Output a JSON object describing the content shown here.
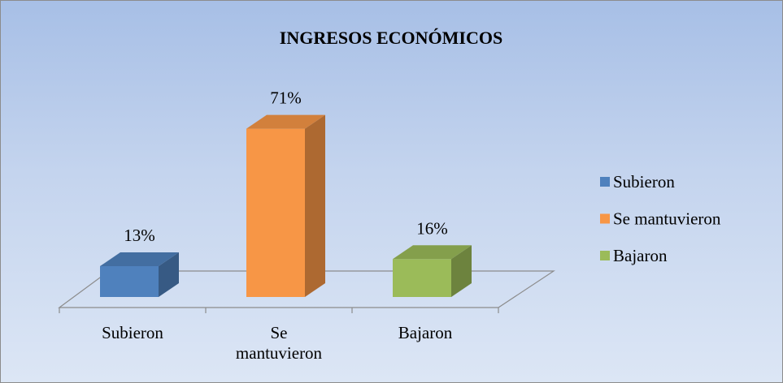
{
  "chart_data": {
    "type": "bar3d",
    "title": "INGRESOS ECONÓMICOS",
    "categories": [
      "Subieron",
      "Se mantuvieron",
      "Bajaron"
    ],
    "values": [
      13,
      71,
      16
    ],
    "value_labels": [
      "13%",
      "71%",
      "16%"
    ],
    "colors": [
      "#4f81bd",
      "#f79646",
      "#9bbb59"
    ],
    "legend": "right"
  }
}
